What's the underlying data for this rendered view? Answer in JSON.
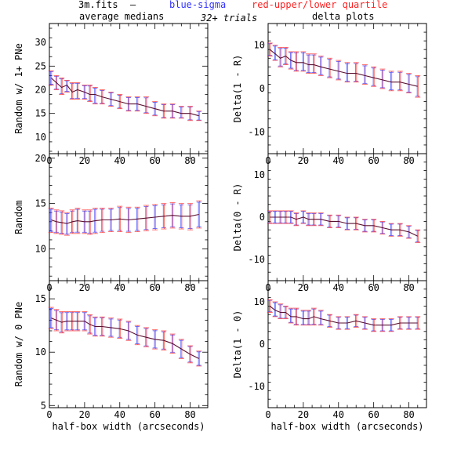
{
  "header": {
    "file": "3m.fits",
    "dash": "—",
    "blue_label": "blue-sigma",
    "red_label": "red-upper/lower quartile",
    "left_title": "average medians",
    "trials": "32+ trials",
    "right_title": "delta plots",
    "colors": {
      "blue": "#3333ff",
      "red": "#ff2222",
      "line": "#5a1030",
      "axis": "#000000"
    }
  },
  "chart_data": [
    {
      "type": "line",
      "ylabel": "Random w/ 1+ PNe",
      "xlabel": "",
      "xlim": [
        0,
        90
      ],
      "ylim": [
        6.5,
        34
      ],
      "xticks": [
        "0",
        "20",
        "40",
        "60",
        "80"
      ],
      "yticks": [
        "10",
        "15",
        "20",
        "25",
        "30"
      ],
      "x": [
        1,
        4,
        7,
        10,
        13,
        16,
        20,
        23,
        26,
        30,
        35,
        40,
        45,
        50,
        55,
        60,
        65,
        70,
        75,
        80,
        85
      ],
      "y": [
        22.5,
        21.5,
        20.5,
        21.0,
        19.5,
        20.0,
        19.5,
        19.0,
        19.0,
        18.5,
        18.0,
        17.5,
        17.0,
        17.0,
        16.5,
        16.0,
        15.5,
        15.5,
        15.0,
        15.0,
        14.5
      ],
      "upper": [
        24.0,
        23.0,
        22.5,
        22.0,
        21.5,
        21.5,
        21.0,
        21.0,
        20.5,
        20.0,
        19.5,
        19.0,
        18.5,
        18.5,
        18.5,
        17.5,
        17.0,
        17.0,
        16.5,
        16.5,
        15.5
      ],
      "lower": [
        21.0,
        20.0,
        19.0,
        19.5,
        18.0,
        18.0,
        18.0,
        17.5,
        17.0,
        17.0,
        16.5,
        16.0,
        15.5,
        15.5,
        15.0,
        14.5,
        14.0,
        14.0,
        14.0,
        13.5,
        13.5
      ]
    },
    {
      "type": "line",
      "ylabel": "Delta(1 - R)",
      "xlabel": "",
      "xlim": [
        0,
        90
      ],
      "ylim": [
        -15,
        15
      ],
      "xticks": [
        "0",
        "20",
        "40",
        "60",
        "80"
      ],
      "yticks": [
        "-10",
        "0",
        "10"
      ],
      "x": [
        1,
        4,
        7,
        10,
        13,
        16,
        20,
        23,
        26,
        30,
        35,
        40,
        45,
        50,
        55,
        60,
        65,
        70,
        75,
        80,
        85
      ],
      "y": [
        9.0,
        8.0,
        7.0,
        7.5,
        6.5,
        6.0,
        6.0,
        5.5,
        5.5,
        5.0,
        4.5,
        4.0,
        3.5,
        3.5,
        3.0,
        2.5,
        2.0,
        1.5,
        1.5,
        1.0,
        0.5
      ],
      "upper": [
        10.5,
        10.0,
        9.5,
        9.5,
        8.5,
        8.5,
        8.5,
        8.0,
        8.0,
        7.5,
        7.0,
        6.5,
        6.0,
        6.0,
        5.5,
        5.0,
        4.5,
        4.0,
        4.0,
        3.5,
        3.0
      ],
      "lower": [
        7.5,
        6.5,
        5.0,
        5.5,
        4.5,
        4.0,
        4.0,
        3.5,
        3.5,
        3.0,
        2.5,
        2.0,
        1.5,
        1.5,
        1.0,
        0.5,
        0.0,
        -0.5,
        -0.5,
        -1.0,
        -2.0
      ]
    },
    {
      "type": "line",
      "ylabel": "Random",
      "xlabel": "",
      "xlim": [
        0,
        90
      ],
      "ylim": [
        6.5,
        20.5
      ],
      "xticks": [
        "0",
        "20",
        "40",
        "60",
        "80"
      ],
      "yticks": [
        "10",
        "15",
        "20"
      ],
      "x": [
        1,
        4,
        7,
        10,
        13,
        16,
        20,
        23,
        26,
        30,
        35,
        40,
        45,
        50,
        55,
        60,
        65,
        70,
        75,
        80,
        85
      ],
      "y": [
        13.2,
        13.0,
        12.9,
        12.8,
        13.0,
        13.1,
        13.0,
        13.0,
        13.1,
        13.2,
        13.2,
        13.3,
        13.2,
        13.3,
        13.4,
        13.5,
        13.6,
        13.7,
        13.6,
        13.6,
        13.8
      ],
      "upper": [
        14.5,
        14.3,
        14.2,
        14.0,
        14.3,
        14.5,
        14.3,
        14.3,
        14.5,
        14.5,
        14.5,
        14.7,
        14.6,
        14.6,
        14.8,
        14.9,
        15.0,
        15.1,
        15.0,
        15.0,
        15.3
      ],
      "lower": [
        11.8,
        11.7,
        11.6,
        11.5,
        11.7,
        11.7,
        11.7,
        11.6,
        11.7,
        11.8,
        11.9,
        11.9,
        11.8,
        11.9,
        12.0,
        12.1,
        12.2,
        12.3,
        12.2,
        12.1,
        12.3
      ]
    },
    {
      "type": "line",
      "ylabel": "Delta(0 - R)",
      "xlabel": "",
      "xlim": [
        0,
        90
      ],
      "ylim": [
        -15,
        15
      ],
      "xticks": [
        "0",
        "20",
        "40",
        "60",
        "80"
      ],
      "yticks": [
        "-10",
        "0",
        "10"
      ],
      "x": [
        1,
        4,
        7,
        10,
        13,
        16,
        20,
        23,
        26,
        30,
        35,
        40,
        45,
        50,
        55,
        60,
        65,
        70,
        75,
        80,
        85
      ],
      "y": [
        0.0,
        0.0,
        0.0,
        0.0,
        0.0,
        -0.5,
        0.0,
        -0.5,
        -0.5,
        -0.5,
        -1.0,
        -1.0,
        -1.5,
        -1.5,
        -2.0,
        -2.0,
        -2.5,
        -3.0,
        -3.0,
        -3.5,
        -4.5
      ],
      "upper": [
        1.5,
        1.5,
        1.5,
        1.5,
        1.5,
        1.0,
        1.5,
        1.0,
        1.0,
        1.0,
        0.5,
        0.5,
        0.0,
        0.0,
        -0.5,
        -0.5,
        -1.0,
        -1.5,
        -1.5,
        -2.0,
        -3.0
      ],
      "lower": [
        -1.5,
        -1.5,
        -1.5,
        -1.5,
        -1.5,
        -2.0,
        -1.5,
        -2.0,
        -2.0,
        -2.0,
        -2.5,
        -2.5,
        -3.0,
        -3.0,
        -3.5,
        -3.5,
        -4.0,
        -4.5,
        -4.5,
        -5.0,
        -6.0
      ]
    },
    {
      "type": "line",
      "ylabel": "Random w/ 0 PNe",
      "xlabel": "half-box width (arcseconds)",
      "xlim": [
        0,
        90
      ],
      "ylim": [
        4.8,
        16.7
      ],
      "xticks": [
        "0",
        "20",
        "40",
        "60",
        "80"
      ],
      "yticks": [
        "5",
        "10",
        "15"
      ],
      "x": [
        1,
        4,
        7,
        10,
        13,
        16,
        20,
        23,
        26,
        30,
        35,
        40,
        45,
        50,
        55,
        60,
        65,
        70,
        75,
        80,
        85
      ],
      "y": [
        13.2,
        13.0,
        12.8,
        12.9,
        12.9,
        12.9,
        12.9,
        12.6,
        12.4,
        12.4,
        12.3,
        12.2,
        12.0,
        11.6,
        11.4,
        11.2,
        11.1,
        10.8,
        10.3,
        9.8,
        9.4
      ],
      "upper": [
        14.2,
        14.0,
        13.8,
        13.8,
        13.8,
        13.8,
        13.8,
        13.5,
        13.3,
        13.3,
        13.2,
        13.1,
        12.9,
        12.5,
        12.3,
        12.1,
        12.0,
        11.7,
        11.2,
        10.6,
        10.1
      ],
      "lower": [
        12.2,
        12.0,
        11.8,
        12.0,
        12.0,
        12.0,
        12.0,
        11.7,
        11.5,
        11.5,
        11.4,
        11.3,
        11.1,
        10.7,
        10.5,
        10.3,
        10.2,
        9.9,
        9.4,
        9.0,
        8.7
      ]
    },
    {
      "type": "line",
      "ylabel": "Delta(1 - 0)",
      "xlabel": "half-box width (arcseconds)",
      "xlim": [
        0,
        90
      ],
      "ylim": [
        -15,
        15
      ],
      "xticks": [
        "0",
        "20",
        "40",
        "60",
        "80"
      ],
      "yticks": [
        "-10",
        "0",
        "10"
      ],
      "x": [
        1,
        4,
        7,
        10,
        13,
        16,
        20,
        23,
        26,
        30,
        35,
        40,
        45,
        50,
        55,
        60,
        65,
        70,
        75,
        80,
        85
      ],
      "y": [
        9.0,
        8.0,
        7.5,
        7.5,
        6.5,
        6.5,
        6.0,
        6.0,
        6.5,
        6.0,
        5.5,
        5.0,
        5.0,
        5.5,
        5.0,
        4.5,
        4.5,
        4.5,
        5.0,
        5.0,
        5.0
      ],
      "upper": [
        10.5,
        10.0,
        9.5,
        9.0,
        8.5,
        8.5,
        8.0,
        8.0,
        8.5,
        8.0,
        7.0,
        6.5,
        6.5,
        7.0,
        6.5,
        6.0,
        6.0,
        6.0,
        6.5,
        6.5,
        6.5
      ],
      "lower": [
        7.5,
        6.5,
        6.0,
        6.0,
        5.0,
        4.5,
        4.5,
        4.5,
        4.5,
        4.5,
        4.0,
        3.5,
        3.5,
        4.0,
        3.5,
        3.0,
        3.0,
        3.0,
        3.5,
        3.5,
        3.5
      ]
    }
  ]
}
